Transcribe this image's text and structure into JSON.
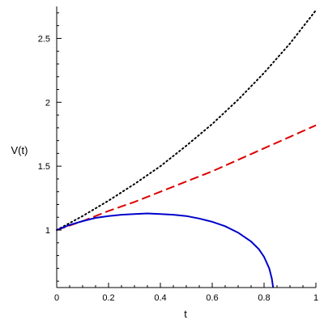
{
  "chart_data": {
    "type": "line",
    "title": "",
    "xlabel": "t",
    "ylabel": "V(t)",
    "xlim": [
      0,
      1
    ],
    "ylim": [
      0.55,
      2.75
    ],
    "grid": false,
    "legend": "none",
    "x_ticks": [
      {
        "value": 0,
        "label": "0"
      },
      {
        "value": 0.2,
        "label": "0.2"
      },
      {
        "value": 0.4,
        "label": "0.4"
      },
      {
        "value": 0.6,
        "label": "0.6"
      },
      {
        "value": 0.8,
        "label": "0.8"
      },
      {
        "value": 1,
        "label": "1"
      }
    ],
    "y_ticks": [
      {
        "value": 1,
        "label": "1"
      },
      {
        "value": 1.5,
        "label": "1.5"
      },
      {
        "value": 2,
        "label": "2"
      },
      {
        "value": 2.5,
        "label": "2.5"
      }
    ],
    "series": [
      {
        "style": "dotted",
        "color": "#000000",
        "points": [
          [
            0,
            1.0
          ],
          [
            0.1,
            1.11
          ],
          [
            0.2,
            1.23
          ],
          [
            0.3,
            1.36
          ],
          [
            0.4,
            1.5
          ],
          [
            0.5,
            1.66
          ],
          [
            0.6,
            1.83
          ],
          [
            0.7,
            2.02
          ],
          [
            0.8,
            2.23
          ],
          [
            0.9,
            2.46
          ],
          [
            1.0,
            2.72
          ]
        ]
      },
      {
        "style": "dashed",
        "color": "#dd0000",
        "points": [
          [
            0,
            1.0
          ],
          [
            0.1,
            1.07
          ],
          [
            0.2,
            1.15
          ],
          [
            0.3,
            1.22
          ],
          [
            0.4,
            1.3
          ],
          [
            0.5,
            1.38
          ],
          [
            0.6,
            1.46
          ],
          [
            0.7,
            1.55
          ],
          [
            0.8,
            1.64
          ],
          [
            0.9,
            1.73
          ],
          [
            1.0,
            1.82
          ]
        ]
      },
      {
        "style": "solid",
        "color": "#0000cc",
        "points": [
          [
            0,
            1.0
          ],
          [
            0.05,
            1.04
          ],
          [
            0.1,
            1.07
          ],
          [
            0.15,
            1.095
          ],
          [
            0.2,
            1.11
          ],
          [
            0.25,
            1.12
          ],
          [
            0.3,
            1.125
          ],
          [
            0.35,
            1.13
          ],
          [
            0.4,
            1.125
          ],
          [
            0.45,
            1.12
          ],
          [
            0.5,
            1.11
          ],
          [
            0.55,
            1.09
          ],
          [
            0.6,
            1.065
          ],
          [
            0.65,
            1.03
          ],
          [
            0.7,
            0.98
          ],
          [
            0.75,
            0.91
          ],
          [
            0.78,
            0.85
          ],
          [
            0.8,
            0.79
          ],
          [
            0.82,
            0.7
          ],
          [
            0.83,
            0.62
          ],
          [
            0.835,
            0.55
          ]
        ]
      }
    ]
  }
}
